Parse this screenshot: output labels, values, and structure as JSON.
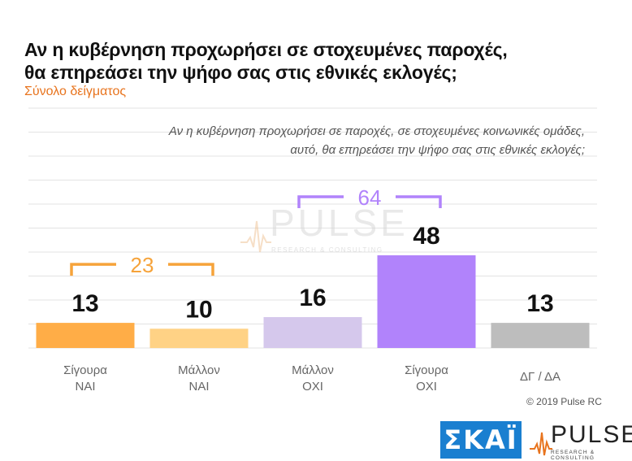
{
  "header": {
    "title_line1": "Αν η κυβέρνηση προχωρήσει σε στοχευμένες παροχές,",
    "title_line2": "θα επηρεάσει την ψήφο σας στις εθνικές εκλογές;",
    "subtitle": "Σύνολο δείγματος",
    "question_line1": "Αν η κυβέρνηση προχωρήσει σε παροχές, σε στοχευμένες κοινωνικές ομάδες,",
    "question_line2": "αυτό, θα επηρεάσει την ψήφο σας στις εθνικές εκλογές;"
  },
  "chart_data": {
    "type": "bar",
    "categories": [
      [
        "Σίγουρα",
        "ΝΑΙ"
      ],
      [
        "Μάλλον",
        "ΝΑΙ"
      ],
      [
        "Μάλλον",
        "ΟΧΙ"
      ],
      [
        "Σίγουρα",
        "ΟΧΙ"
      ],
      [
        "ΔΓ / ΔΑ"
      ]
    ],
    "values": [
      13,
      10,
      16,
      48,
      13
    ],
    "colors": [
      "#ffad47",
      "#ffd285",
      "#d5c8ec",
      "#b183fb",
      "#bdbdbd"
    ],
    "groups": [
      {
        "label": "23",
        "from": 0,
        "to": 1,
        "color": "#f6a33a"
      },
      {
        "label": "64",
        "from": 2,
        "to": 3,
        "color": "#b183fb"
      }
    ],
    "grid": true
  },
  "watermark": {
    "word": "PULSE",
    "tagline": "RESEARCH & CONSULTING"
  },
  "footer": {
    "copyright": "© 2019 Pulse RC",
    "logo_skai": "ΣΚΑΪ",
    "logo_pulse": "PULSE",
    "logo_pulse_tagline": "RESEARCH & CONSULTING"
  }
}
